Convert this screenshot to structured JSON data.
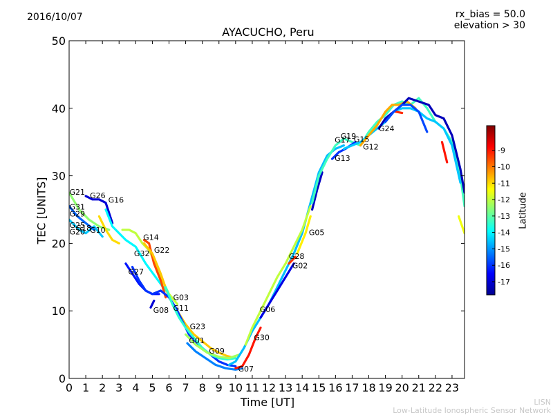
{
  "header": {
    "date": "2016/10/07",
    "rx_bias": "rx_bias = 50.0",
    "elevation": "elevation > 30"
  },
  "credits": {
    "line1": "LISN",
    "line2": "Low-Latitude Ionospheric Sensor Network"
  },
  "chart_data": {
    "type": "scatter",
    "title": "AYACUCHO, Peru",
    "xlabel": "Time [UT]",
    "ylabel": "TEC [UNITS]",
    "xlim": [
      0,
      23.75
    ],
    "ylim": [
      0,
      50
    ],
    "xticks": [
      "0",
      "1",
      "2",
      "3",
      "4",
      "5",
      "6",
      "7",
      "8",
      "9",
      "10",
      "11",
      "12",
      "13",
      "14",
      "15",
      "16",
      "17",
      "18",
      "19",
      "20",
      "21",
      "22",
      "23"
    ],
    "yticks": [
      "0",
      "10",
      "20",
      "30",
      "40",
      "50"
    ],
    "colorbar": {
      "label": "Latitude",
      "range": [
        -17.8,
        -7.5
      ],
      "ticks": [
        "-9",
        "-10",
        "-11",
        "-12",
        "-13",
        "-14",
        "-15",
        "-16",
        "-17"
      ],
      "tick_values": [
        -9,
        -10,
        -11,
        -12,
        -13,
        -14,
        -15,
        -16,
        -17
      ],
      "colors": [
        "#00008f",
        "#0000ff",
        "#0080ff",
        "#00ffff",
        "#80ff80",
        "#ffff00",
        "#ff8000",
        "#ff0000",
        "#800000"
      ]
    },
    "satellite_labels": [
      {
        "name": "G21",
        "x": 0.02,
        "y": 27.2
      },
      {
        "name": "G26",
        "x": 1.25,
        "y": 26.7
      },
      {
        "name": "G16",
        "x": 2.35,
        "y": 26.0
      },
      {
        "name": "G31",
        "x": 0.02,
        "y": 25.0
      },
      {
        "name": "G29",
        "x": 0.02,
        "y": 24.0
      },
      {
        "name": "G25",
        "x": 0.02,
        "y": 22.3
      },
      {
        "name": "G18",
        "x": 0.4,
        "y": 21.9
      },
      {
        "name": "G20",
        "x": 0.02,
        "y": 21.3
      },
      {
        "name": "G10",
        "x": 1.25,
        "y": 21.6
      },
      {
        "name": "G14",
        "x": 4.45,
        "y": 20.5
      },
      {
        "name": "G22",
        "x": 5.1,
        "y": 18.6
      },
      {
        "name": "G32",
        "x": 3.9,
        "y": 18.1
      },
      {
        "name": "G27",
        "x": 3.55,
        "y": 15.4
      },
      {
        "name": "G03",
        "x": 6.25,
        "y": 11.6
      },
      {
        "name": "G11",
        "x": 6.25,
        "y": 10.0
      },
      {
        "name": "G08",
        "x": 5.05,
        "y": 9.7
      },
      {
        "name": "G23",
        "x": 7.25,
        "y": 7.3
      },
      {
        "name": "G01",
        "x": 7.2,
        "y": 5.2
      },
      {
        "name": "G09",
        "x": 8.4,
        "y": 3.7
      },
      {
        "name": "G07",
        "x": 10.15,
        "y": 1.0
      },
      {
        "name": "G30",
        "x": 11.1,
        "y": 5.7
      },
      {
        "name": "G06",
        "x": 11.45,
        "y": 9.8
      },
      {
        "name": "G28",
        "x": 13.2,
        "y": 17.7
      },
      {
        "name": "G02",
        "x": 13.4,
        "y": 16.3
      },
      {
        "name": "G05",
        "x": 14.4,
        "y": 21.2
      },
      {
        "name": "G13",
        "x": 15.95,
        "y": 32.2
      },
      {
        "name": "G19",
        "x": 16.3,
        "y": 35.5
      },
      {
        "name": "G17",
        "x": 15.95,
        "y": 34.9
      },
      {
        "name": "G15",
        "x": 17.1,
        "y": 35.0
      },
      {
        "name": "G12",
        "x": 17.65,
        "y": 33.9
      },
      {
        "name": "G24",
        "x": 18.6,
        "y": 36.6
      }
    ],
    "series": [
      {
        "name": "arc-a",
        "lat": -12.5,
        "points": [
          [
            0.0,
            27.5
          ],
          [
            0.6,
            25.0
          ],
          [
            1.2,
            23.5
          ],
          [
            1.8,
            22.5
          ],
          [
            2.4,
            22.0
          ]
        ]
      },
      {
        "name": "arc-b",
        "lat": -14.5,
        "points": [
          [
            0.0,
            23.5
          ],
          [
            0.6,
            22.0
          ],
          [
            1.0,
            21.5
          ],
          [
            1.5,
            22.5
          ],
          [
            2.0,
            21.0
          ]
        ]
      },
      {
        "name": "arc-c",
        "lat": -15.5,
        "points": [
          [
            0.0,
            25.5
          ],
          [
            0.5,
            24.0
          ],
          [
            1.0,
            23.0
          ],
          [
            1.5,
            22.0
          ]
        ]
      },
      {
        "name": "arc-d",
        "lat": -17.0,
        "points": [
          [
            1.0,
            27.0
          ],
          [
            1.4,
            26.5
          ],
          [
            1.8,
            26.5
          ],
          [
            2.2,
            26.0
          ],
          [
            2.6,
            23.0
          ]
        ]
      },
      {
        "name": "arc-e",
        "lat": -11.0,
        "points": [
          [
            1.8,
            24.0
          ],
          [
            2.2,
            22.0
          ],
          [
            2.6,
            20.5
          ],
          [
            3.0,
            20.0
          ]
        ]
      },
      {
        "name": "arc-f",
        "lat": -14.0,
        "points": [
          [
            2.2,
            25.0
          ],
          [
            2.6,
            22.5
          ],
          [
            3.0,
            21.5
          ],
          [
            3.4,
            20.5
          ],
          [
            4.0,
            19.5
          ],
          [
            4.6,
            17.0
          ],
          [
            5.2,
            15.0
          ],
          [
            5.8,
            13.0
          ]
        ]
      },
      {
        "name": "arc-g",
        "lat": -12.0,
        "points": [
          [
            3.2,
            22.0
          ],
          [
            3.6,
            22.0
          ],
          [
            4.0,
            21.5
          ],
          [
            4.4,
            20.0
          ],
          [
            4.8,
            19.0
          ],
          [
            5.2,
            17.0
          ],
          [
            5.6,
            14.5
          ],
          [
            6.0,
            12.5
          ],
          [
            6.5,
            11.0
          ]
        ]
      },
      {
        "name": "arc-h",
        "lat": -9.5,
        "points": [
          [
            4.5,
            20.5
          ],
          [
            4.8,
            20.0
          ],
          [
            5.1,
            17.0
          ],
          [
            5.5,
            14.5
          ],
          [
            5.8,
            12.0
          ]
        ]
      },
      {
        "name": "arc-i",
        "lat": -10.8,
        "points": [
          [
            4.5,
            20.0
          ],
          [
            5.0,
            18.5
          ],
          [
            5.5,
            15.5
          ],
          [
            6.0,
            12.0
          ],
          [
            6.5,
            10.0
          ],
          [
            7.0,
            8.0
          ],
          [
            7.5,
            6.5
          ],
          [
            8.0,
            5.5
          ],
          [
            8.5,
            4.5
          ],
          [
            9.0,
            3.8
          ],
          [
            9.5,
            3.3
          ],
          [
            10.0,
            3.0
          ]
        ]
      },
      {
        "name": "arc-j",
        "lat": -16.3,
        "points": [
          [
            3.4,
            17.0
          ],
          [
            3.8,
            15.5
          ],
          [
            4.2,
            14.0
          ],
          [
            4.6,
            13.0
          ],
          [
            5.0,
            12.5
          ],
          [
            5.4,
            12.5
          ]
        ]
      },
      {
        "name": "arc-k",
        "lat": -16.0,
        "points": [
          [
            3.8,
            16.5
          ],
          [
            4.2,
            14.5
          ],
          [
            4.6,
            13.0
          ],
          [
            5.0,
            12.5
          ],
          [
            5.5,
            13.0
          ],
          [
            6.0,
            12.0
          ],
          [
            6.4,
            10.5
          ],
          [
            6.8,
            8.5
          ],
          [
            7.2,
            6.5
          ],
          [
            7.6,
            5.5
          ],
          [
            8.0,
            4.5
          ],
          [
            8.5,
            3.5
          ],
          [
            9.0,
            2.5
          ],
          [
            9.5,
            2.0
          ],
          [
            10.0,
            1.8
          ]
        ]
      },
      {
        "name": "arc-l",
        "lat": -13.5,
        "points": [
          [
            5.8,
            13.5
          ],
          [
            6.2,
            11.0
          ],
          [
            6.6,
            9.0
          ],
          [
            7.0,
            7.5
          ],
          [
            7.5,
            6.0
          ],
          [
            8.0,
            4.5
          ],
          [
            8.5,
            3.5
          ],
          [
            9.0,
            3.0
          ],
          [
            9.5,
            2.8
          ],
          [
            10.0,
            3.0
          ]
        ]
      },
      {
        "name": "arc-m",
        "lat": -17.0,
        "points": [
          [
            4.9,
            10.5
          ],
          [
            5.1,
            11.5
          ]
        ]
      },
      {
        "name": "arc-n",
        "lat": -15.2,
        "points": [
          [
            7.1,
            5.2
          ],
          [
            7.6,
            4.0
          ],
          [
            8.2,
            3.0
          ],
          [
            8.8,
            2.0
          ],
          [
            9.4,
            1.5
          ],
          [
            10.0,
            1.3
          ],
          [
            10.4,
            1.5
          ]
        ]
      },
      {
        "name": "arc-o",
        "lat": -12.3,
        "points": [
          [
            7.0,
            6.5
          ],
          [
            7.6,
            5.0
          ],
          [
            8.3,
            3.8
          ],
          [
            9.0,
            3.2
          ],
          [
            9.6,
            3.0
          ],
          [
            10.2,
            3.5
          ]
        ]
      },
      {
        "name": "arc-p",
        "lat": -9.0,
        "points": [
          [
            10.0,
            1.5
          ],
          [
            10.4,
            1.8
          ],
          [
            10.8,
            3.5
          ],
          [
            11.2,
            6.0
          ],
          [
            11.5,
            7.5
          ]
        ]
      },
      {
        "name": "arc-q",
        "lat": -14.6,
        "points": [
          [
            9.6,
            2.0
          ],
          [
            10.0,
            2.5
          ],
          [
            10.5,
            4.5
          ],
          [
            11.0,
            7.0
          ],
          [
            11.5,
            9.0
          ],
          [
            12.0,
            11.0
          ],
          [
            12.5,
            13.5
          ],
          [
            13.0,
            16.0
          ],
          [
            13.5,
            18.5
          ],
          [
            14.0,
            21.5
          ],
          [
            14.5,
            26.0
          ],
          [
            15.0,
            30.5
          ],
          [
            15.5,
            33.0
          ],
          [
            16.0,
            34.0
          ],
          [
            16.5,
            34.5
          ]
        ]
      },
      {
        "name": "arc-r",
        "lat": -12.0,
        "points": [
          [
            10.6,
            5.0
          ],
          [
            11.0,
            7.5
          ],
          [
            11.5,
            10.0
          ],
          [
            12.0,
            12.5
          ],
          [
            12.5,
            15.0
          ],
          [
            13.0,
            17.0
          ],
          [
            13.5,
            19.5
          ],
          [
            14.0,
            22.0
          ],
          [
            14.5,
            25.5
          ]
        ]
      },
      {
        "name": "arc-s",
        "lat": -16.8,
        "points": [
          [
            11.5,
            9.0
          ],
          [
            12.0,
            11.0
          ],
          [
            12.5,
            13.0
          ],
          [
            13.0,
            15.0
          ],
          [
            13.5,
            17.0
          ]
        ]
      },
      {
        "name": "arc-t",
        "lat": -9.3,
        "points": [
          [
            13.2,
            17.0
          ],
          [
            13.6,
            18.0
          ]
        ]
      },
      {
        "name": "arc-u",
        "lat": -11.2,
        "points": [
          [
            13.7,
            18.5
          ],
          [
            14.2,
            21.5
          ],
          [
            14.5,
            24.0
          ]
        ]
      },
      {
        "name": "arc-v",
        "lat": -17.2,
        "points": [
          [
            14.6,
            25.0
          ],
          [
            14.9,
            28.0
          ],
          [
            15.2,
            30.5
          ]
        ]
      },
      {
        "name": "arc-w",
        "lat": -13.3,
        "points": [
          [
            14.6,
            26.0
          ],
          [
            15.0,
            30.0
          ],
          [
            15.5,
            32.5
          ],
          [
            16.0,
            34.5
          ],
          [
            16.5,
            35.5
          ],
          [
            17.0,
            35.0
          ],
          [
            17.5,
            34.5
          ],
          [
            18.0,
            36.5
          ],
          [
            18.5,
            38.0
          ],
          [
            19.0,
            39.0
          ],
          [
            19.5,
            40.5
          ],
          [
            20.0,
            41.0
          ],
          [
            20.5,
            40.5
          ],
          [
            21.0,
            41.5
          ],
          [
            21.5,
            40.0
          ],
          [
            22.0,
            38.0
          ],
          [
            22.5,
            37.0
          ],
          [
            23.0,
            35.0
          ],
          [
            23.5,
            30.0
          ],
          [
            23.75,
            25.5
          ]
        ]
      },
      {
        "name": "arc-x",
        "lat": -16.0,
        "points": [
          [
            15.8,
            32.5
          ],
          [
            16.2,
            33.5
          ],
          [
            16.6,
            34.0
          ],
          [
            17.2,
            35.0
          ]
        ]
      },
      {
        "name": "arc-y",
        "lat": -14.5,
        "points": [
          [
            16.5,
            34.0
          ],
          [
            17.0,
            34.5
          ],
          [
            17.5,
            35.0
          ],
          [
            18.0,
            36.0
          ],
          [
            18.5,
            37.0
          ],
          [
            19.0,
            38.0
          ],
          [
            19.5,
            39.5
          ],
          [
            20.0,
            40.0
          ],
          [
            20.5,
            40.0
          ],
          [
            21.0,
            39.5
          ],
          [
            21.5,
            38.5
          ],
          [
            22.0,
            38.0
          ],
          [
            22.5,
            37.0
          ],
          [
            23.0,
            34.5
          ],
          [
            23.5,
            29.0
          ]
        ]
      },
      {
        "name": "arc-z",
        "lat": -10.5,
        "points": [
          [
            17.5,
            34.5
          ],
          [
            18.0,
            36.0
          ],
          [
            18.5,
            37.5
          ],
          [
            19.0,
            39.5
          ],
          [
            19.4,
            40.5
          ],
          [
            19.8,
            40.5
          ],
          [
            20.3,
            41.0
          ],
          [
            20.8,
            40.0
          ]
        ]
      },
      {
        "name": "arc-aa",
        "lat": -9.2,
        "points": [
          [
            19.6,
            39.5
          ],
          [
            20.0,
            39.3
          ]
        ]
      },
      {
        "name": "arc-ab",
        "lat": -17.3,
        "points": [
          [
            18.6,
            37.0
          ],
          [
            19.0,
            38.5
          ],
          [
            19.5,
            39.5
          ],
          [
            20.0,
            40.5
          ],
          [
            20.4,
            41.5
          ],
          [
            21.0,
            41.0
          ],
          [
            21.6,
            40.5
          ],
          [
            22.0,
            39.0
          ],
          [
            22.5,
            38.5
          ],
          [
            23.0,
            36.0
          ],
          [
            23.5,
            31.0
          ],
          [
            23.75,
            27.5
          ]
        ]
      },
      {
        "name": "arc-ac",
        "lat": -15.8,
        "points": [
          [
            19.0,
            38.0
          ],
          [
            19.5,
            39.5
          ],
          [
            20.0,
            40.5
          ],
          [
            20.5,
            40.5
          ],
          [
            21.0,
            39.5
          ],
          [
            21.5,
            36.5
          ]
        ]
      },
      {
        "name": "arc-ad",
        "lat": -11.5,
        "points": [
          [
            23.4,
            24.0
          ],
          [
            23.75,
            21.5
          ]
        ]
      },
      {
        "name": "arc-ae",
        "lat": -9.0,
        "points": [
          [
            22.4,
            35.0
          ],
          [
            22.7,
            32.0
          ]
        ]
      }
    ]
  }
}
